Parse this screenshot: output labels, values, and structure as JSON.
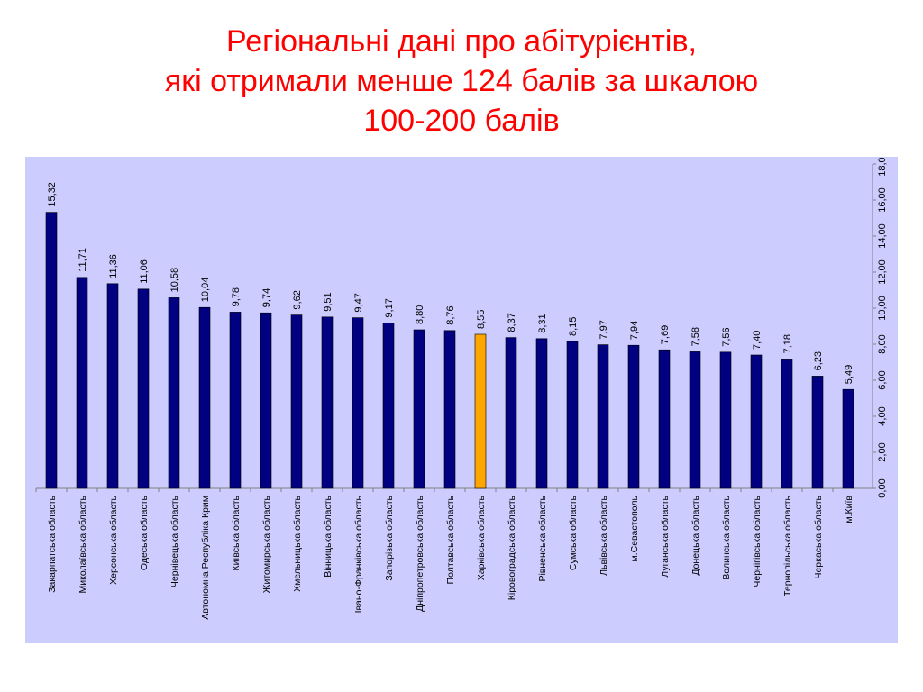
{
  "title_lines": [
    "Регіональні дані про абітурієнтів,",
    "які отримали менше 124 балів за шкалою",
    "100-200 балів"
  ],
  "chart_data": {
    "type": "bar",
    "title": "Регіональні дані про абітурієнтів, які отримали менше 124 балів за шкалою 100-200 балів",
    "xlabel": "",
    "ylabel": "",
    "ylim": [
      0,
      18
    ],
    "y_ticks": [
      "0,00",
      "2,00",
      "4,00",
      "6,00",
      "8,00",
      "10,00",
      "12,00",
      "14,00",
      "16,00",
      "18,00"
    ],
    "y_axis_side": "right",
    "grid": false,
    "colors": {
      "bar": "#000080",
      "highlight": "#ffa500",
      "background": "#ccccff"
    },
    "highlight_index": 14,
    "categories": [
      "Закарпатська область",
      "Миколаївська область",
      "Херсонська область",
      "Одеська область",
      "Чернівецька область",
      "Автономна Республіка Крим",
      "Київська область",
      "Житомирська область",
      "Хмельницька область",
      "Вінницька область",
      "Івано-Франківська область",
      "Запорізька область",
      "Дніпропетровська область",
      "Полтавська область",
      "Харківська область",
      "Кіровоградська область",
      "Рівненська область",
      "Сумська область",
      "Львівська область",
      "м.Севастополь",
      "Луганська область",
      "Донецька область",
      "Волинська область",
      "Чернігівська область",
      "Тернопільська область",
      "Черкаська область",
      "м.Київ"
    ],
    "values": [
      15.32,
      11.71,
      11.36,
      11.06,
      10.58,
      10.04,
      9.78,
      9.74,
      9.62,
      9.51,
      9.47,
      9.17,
      8.8,
      8.76,
      8.55,
      8.37,
      8.31,
      8.15,
      7.97,
      7.94,
      7.69,
      7.58,
      7.56,
      7.4,
      7.18,
      6.23,
      5.49
    ],
    "value_labels": [
      "15,32",
      "11,71",
      "11,36",
      "11,06",
      "10,58",
      "10,04",
      "9,78",
      "9,74",
      "9,62",
      "9,51",
      "9,47",
      "9,17",
      "8,80",
      "8,76",
      "8,55",
      "8,37",
      "8,31",
      "8,15",
      "7,97",
      "7,94",
      "7,69",
      "7,58",
      "7,56",
      "7,40",
      "7,18",
      "6,23",
      "5,49"
    ]
  }
}
